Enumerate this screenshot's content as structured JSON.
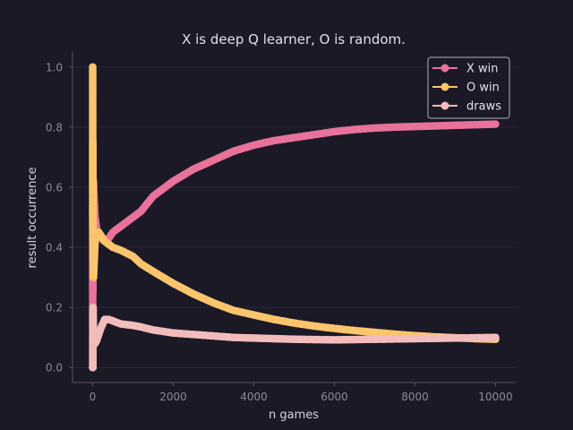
{
  "chart_data": {
    "type": "line",
    "title": "X is deep Q learner, O is random.",
    "xlabel": "n games",
    "ylabel": "result occurrence",
    "xlim": [
      -500,
      10500
    ],
    "ylim": [
      -0.05,
      1.05
    ],
    "xticks": [
      0,
      2000,
      4000,
      6000,
      8000,
      10000
    ],
    "xtick_labels": [
      "0",
      "2000",
      "4000",
      "6000",
      "8000",
      "10000"
    ],
    "yticks": [
      0.0,
      0.2,
      0.4,
      0.6,
      0.8,
      1.0
    ],
    "ytick_labels": [
      "0.0",
      "0.2",
      "0.4",
      "0.6",
      "0.8",
      "1.0"
    ],
    "grid": "horizontal",
    "legend_position": "top-right",
    "colors": {
      "background": "#1b1926",
      "grid": "#2a2838",
      "axis": "#55526a"
    },
    "series": [
      {
        "name": "X win",
        "color": "#e8729a",
        "x": [
          1,
          2,
          3,
          4,
          6,
          10,
          20,
          40,
          60,
          100,
          150,
          200,
          300,
          400,
          500,
          700,
          1000,
          1200,
          1500,
          2000,
          2500,
          3000,
          3500,
          4000,
          4500,
          5000,
          5500,
          6000,
          6500,
          7000,
          7500,
          8000,
          8500,
          9000,
          9500,
          10000
        ],
        "y": [
          0.0,
          0.5,
          0.33,
          0.25,
          0.4,
          0.6,
          0.62,
          0.55,
          0.5,
          0.46,
          0.44,
          0.43,
          0.42,
          0.43,
          0.45,
          0.47,
          0.5,
          0.52,
          0.57,
          0.62,
          0.66,
          0.69,
          0.72,
          0.74,
          0.755,
          0.765,
          0.775,
          0.785,
          0.792,
          0.797,
          0.8,
          0.802,
          0.804,
          0.806,
          0.808,
          0.81
        ]
      },
      {
        "name": "O win",
        "color": "#fbc56e",
        "x": [
          1,
          2,
          3,
          4,
          6,
          10,
          20,
          40,
          60,
          100,
          150,
          200,
          300,
          400,
          500,
          700,
          1000,
          1200,
          1500,
          2000,
          2500,
          3000,
          3500,
          4000,
          4500,
          5000,
          5500,
          6000,
          6500,
          7000,
          7500,
          8000,
          8500,
          9000,
          9500,
          10000
        ],
        "y": [
          1.0,
          0.5,
          0.67,
          0.75,
          0.5,
          0.4,
          0.3,
          0.36,
          0.42,
          0.45,
          0.45,
          0.44,
          0.42,
          0.41,
          0.4,
          0.39,
          0.37,
          0.345,
          0.32,
          0.28,
          0.245,
          0.215,
          0.19,
          0.175,
          0.16,
          0.148,
          0.138,
          0.13,
          0.123,
          0.117,
          0.111,
          0.106,
          0.102,
          0.099,
          0.096,
          0.094
        ]
      },
      {
        "name": "draws",
        "color": "#f3bcbc",
        "x": [
          1,
          2,
          3,
          4,
          6,
          10,
          20,
          40,
          60,
          100,
          150,
          200,
          300,
          400,
          500,
          700,
          1000,
          1200,
          1500,
          2000,
          2500,
          3000,
          3500,
          4000,
          4500,
          5000,
          5500,
          6000,
          6500,
          7000,
          7500,
          8000,
          8500,
          9000,
          9500,
          10000
        ],
        "y": [
          0.0,
          0.0,
          0.0,
          0.0,
          0.1,
          0.2,
          0.08,
          0.09,
          0.08,
          0.09,
          0.11,
          0.13,
          0.16,
          0.16,
          0.155,
          0.145,
          0.14,
          0.135,
          0.125,
          0.115,
          0.11,
          0.105,
          0.1,
          0.098,
          0.096,
          0.094,
          0.093,
          0.092,
          0.093,
          0.094,
          0.095,
          0.096,
          0.097,
          0.098,
          0.099,
          0.1
        ]
      }
    ]
  }
}
